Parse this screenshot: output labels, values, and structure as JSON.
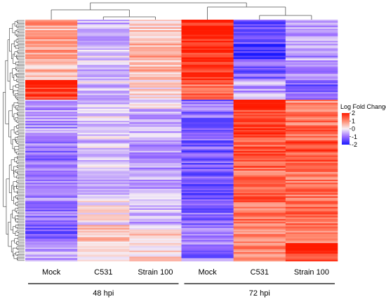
{
  "chart_data": {
    "type": "heatmap",
    "title": "",
    "legend": {
      "title": "Log Fold Change",
      "ticks": [
        2,
        1,
        0,
        -1,
        -2
      ],
      "range": [
        -2,
        2
      ],
      "placement": "right",
      "colors": {
        "low": "#1a1aff",
        "mid": "#f7f0f5",
        "high": "#ff1a00"
      }
    },
    "columns": [
      "Mock",
      "C531",
      "Strain 100",
      "Mock",
      "C531",
      "Strain 100"
    ],
    "groups": [
      {
        "label": "48 hpi",
        "columns": [
          0,
          1,
          2
        ]
      },
      {
        "label": "72 hpi",
        "columns": [
          3,
          4,
          5
        ]
      }
    ],
    "column_dendrogram": true,
    "row_dendrogram": true,
    "row_count": 160,
    "row_blocks": [
      {
        "rows": 16,
        "values": [
          0.7,
          -0.5,
          0.4,
          2.0,
          -1.3,
          -0.5
        ]
      },
      {
        "rows": 10,
        "values": [
          0.7,
          -0.3,
          0.7,
          1.8,
          -1.7,
          -0.8
        ]
      },
      {
        "rows": 14,
        "values": [
          0.6,
          -0.4,
          0.5,
          1.9,
          -1.2,
          -0.6
        ]
      },
      {
        "rows": 13,
        "values": [
          1.8,
          -0.3,
          0.2,
          1.2,
          -0.6,
          -1.2
        ]
      },
      {
        "rows": 6,
        "values": [
          -0.5,
          -0.3,
          -0.2,
          -1.0,
          1.9,
          0.9
        ]
      },
      {
        "rows": 20,
        "values": [
          -0.7,
          -0.2,
          -0.5,
          -1.1,
          1.7,
          1.2
        ]
      },
      {
        "rows": 20,
        "values": [
          -0.9,
          -0.3,
          -0.6,
          -1.2,
          1.4,
          1.4
        ]
      },
      {
        "rows": 21,
        "values": [
          -0.8,
          -0.3,
          -0.5,
          -1.3,
          1.3,
          1.2
        ]
      },
      {
        "rows": 16,
        "values": [
          -0.9,
          0.0,
          -0.4,
          -1.1,
          1.2,
          1.3
        ]
      },
      {
        "rows": 12,
        "values": [
          -1.2,
          0.3,
          0.2,
          -1.0,
          1.0,
          1.0
        ]
      },
      {
        "rows": 12,
        "values": [
          -0.6,
          0.2,
          0.3,
          -1.0,
          1.1,
          1.8
        ]
      }
    ]
  }
}
